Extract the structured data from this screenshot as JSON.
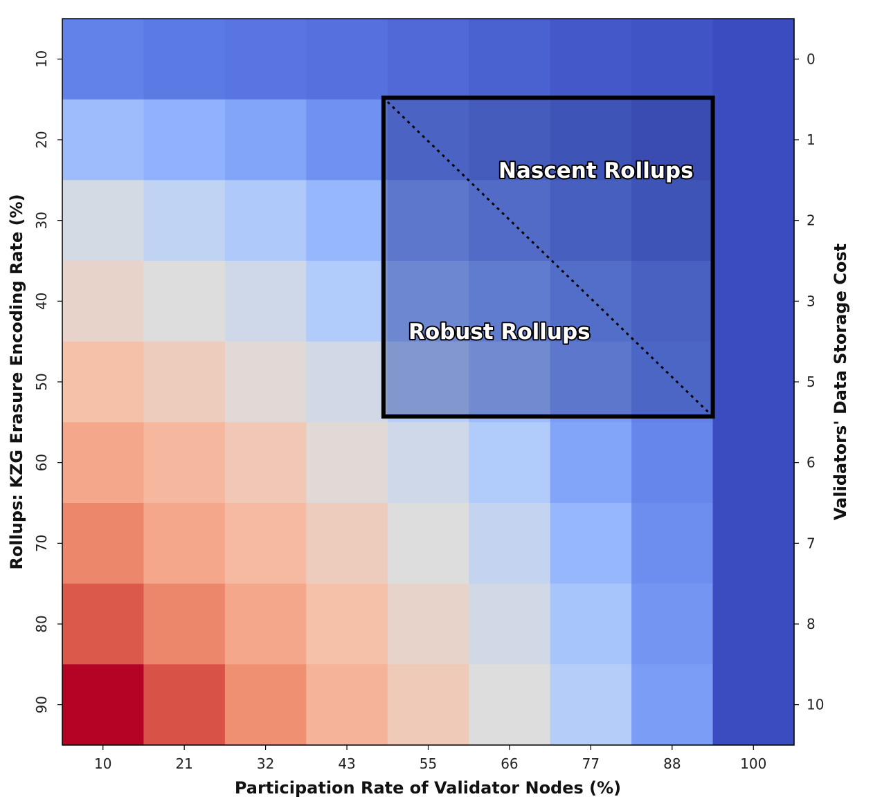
{
  "chart_data": {
    "type": "heatmap",
    "xlabel": "Participation Rate of Validator Nodes (%)",
    "ylabel": "Rollups: KZG Erasure Encoding Rate (%)",
    "y2label": "Validators' Data Storage Cost",
    "x_ticks": [
      "10",
      "21",
      "32",
      "43",
      "55",
      "66",
      "77",
      "88",
      "100"
    ],
    "y_ticks": [
      "10",
      "20",
      "30",
      "40",
      "50",
      "60",
      "70",
      "80",
      "90"
    ],
    "y2_ticks": [
      "0",
      "1",
      "2",
      "3",
      "5",
      "6",
      "7",
      "8",
      "10"
    ],
    "colormap": "coolwarm",
    "value_range": [
      0,
      10
    ],
    "values": [
      [
        1.3,
        1.1,
        1.0,
        0.9,
        0.7,
        0.5,
        0.3,
        0.2,
        0.0
      ],
      [
        3.0,
        2.6,
        2.2,
        1.7,
        1.2,
        0.9,
        0.6,
        0.3,
        0.0
      ],
      [
        4.7,
        4.1,
        3.5,
        2.8,
        2.0,
        1.5,
        1.0,
        0.6,
        0.0
      ],
      [
        5.5,
        5.0,
        4.5,
        3.6,
        2.8,
        2.2,
        1.6,
        1.1,
        0.0
      ],
      [
        6.3,
        5.8,
        5.2,
        4.6,
        3.8,
        3.0,
        2.0,
        1.3,
        0.0
      ],
      [
        7.1,
        6.6,
        6.0,
        5.2,
        4.5,
        3.6,
        2.2,
        1.4,
        0.0
      ],
      [
        7.9,
        7.1,
        6.5,
        5.8,
        5.0,
        4.2,
        2.8,
        1.6,
        0.0
      ],
      [
        8.8,
        7.9,
        7.1,
        6.3,
        5.5,
        4.6,
        3.3,
        1.8,
        0.0
      ],
      [
        10.0,
        8.9,
        7.7,
        6.7,
        5.9,
        5.0,
        3.7,
        2.0,
        0.0
      ]
    ],
    "annotations": [
      "Nascent Rollups",
      "Robust Rollups"
    ],
    "highlight": {
      "x_from": "55",
      "x_to": "88",
      "y_from": "20",
      "y_to": "50",
      "diagonal": "dotted"
    }
  }
}
